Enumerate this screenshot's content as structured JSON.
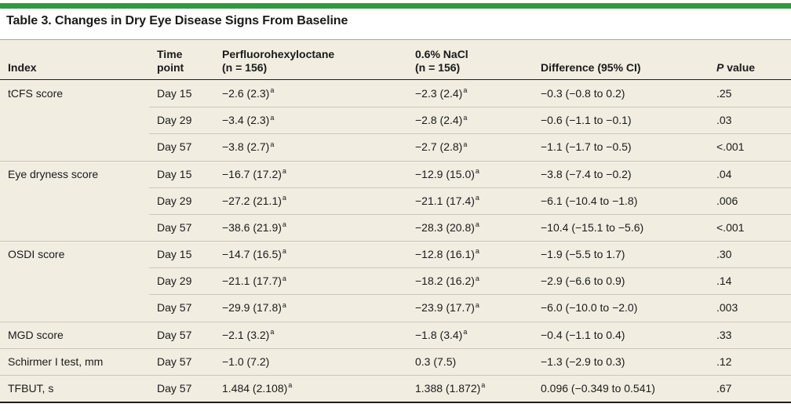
{
  "title": "Table 3. Changes in Dry Eye Disease Signs From Baseline",
  "colors": {
    "green": "#2E9B3E",
    "bg": "#F1EDE1",
    "rule_dark": "#1E1E1E",
    "rule_light": "#CCC9BA",
    "title_rule": "#A9A69A",
    "text": "#1A1A18"
  },
  "header": {
    "index": "Index",
    "time_line1": "Time",
    "time_line2": "point",
    "group1_line1": "Perfluorohexyloctane",
    "group1_line2": "(n = 156)",
    "group2_line1": "0.6% NaCl",
    "group2_line2": "(n = 156)",
    "diff": "Difference (95% CI)",
    "p_italic": "P",
    "p_rest": " value"
  },
  "table": {
    "rows": [
      {
        "index": "tCFS score",
        "time": "Day 15",
        "g1": "−2.6 (2.3)",
        "g1sup": "a",
        "g2": "−2.3 (2.4)",
        "g2sup": "a",
        "diff": "−0.3 (−0.8 to 0.2)",
        "p": ".25"
      },
      {
        "index": "",
        "time": "Day 29",
        "g1": "−3.4 (2.3)",
        "g1sup": "a",
        "g2": "−2.8 (2.4)",
        "g2sup": "a",
        "diff": "−0.6 (−1.1 to −0.1)",
        "p": ".03"
      },
      {
        "index": "",
        "time": "Day 57",
        "g1": "−3.8 (2.7)",
        "g1sup": "a",
        "g2": "−2.7 (2.8)",
        "g2sup": "a",
        "diff": "−1.1 (−1.7 to −0.5)",
        "p": "<.001"
      },
      {
        "index": "Eye dryness score",
        "time": "Day 15",
        "g1": "−16.7 (17.2)",
        "g1sup": "a",
        "g2": "−12.9 (15.0)",
        "g2sup": "a",
        "diff": "−3.8 (−7.4 to −0.2)",
        "p": ".04"
      },
      {
        "index": "",
        "time": "Day 29",
        "g1": "−27.2 (21.1)",
        "g1sup": "a",
        "g2": "−21.1 (17.4)",
        "g2sup": "a",
        "diff": "−6.1 (−10.4 to −1.8)",
        "p": ".006"
      },
      {
        "index": "",
        "time": "Day 57",
        "g1": "−38.6 (21.9)",
        "g1sup": "a",
        "g2": "−28.3 (20.8)",
        "g2sup": "a",
        "diff": "−10.4 (−15.1 to −5.6)",
        "p": "<.001"
      },
      {
        "index": "OSDI score",
        "time": "Day 15",
        "g1": "−14.7 (16.5)",
        "g1sup": "a",
        "g2": "−12.8 (16.1)",
        "g2sup": "a",
        "diff": "−1.9 (−5.5 to 1.7)",
        "p": ".30"
      },
      {
        "index": "",
        "time": "Day 29",
        "g1": "−21.1 (17.7)",
        "g1sup": "a",
        "g2": "−18.2 (16.2)",
        "g2sup": "a",
        "diff": "−2.9 (−6.6 to 0.9)",
        "p": ".14"
      },
      {
        "index": "",
        "time": "Day 57",
        "g1": "−29.9 (17.8)",
        "g1sup": "a",
        "g2": "−23.9 (17.7)",
        "g2sup": "a",
        "diff": "−6.0 (−10.0 to −2.0)",
        "p": ".003"
      },
      {
        "index": "MGD score",
        "time": "Day 57",
        "g1": "−2.1 (3.2)",
        "g1sup": "a",
        "g2": "−1.8 (3.4)",
        "g2sup": "a",
        "diff": "−0.4 (−1.1 to 0.4)",
        "p": ".33"
      },
      {
        "index": "Schirmer I test, mm",
        "time": "Day 57",
        "g1": "−1.0 (7.2)",
        "g1sup": "",
        "g2": "0.3 (7.5)",
        "g2sup": "",
        "diff": "−1.3 (−2.9 to 0.3)",
        "p": ".12"
      },
      {
        "index": "TFBUT, s",
        "time": "Day 57",
        "g1": "1.484 (2.108)",
        "g1sup": "a",
        "g2": "1.388 (1.872)",
        "g2sup": "a",
        "diff": "0.096 (−0.349 to 0.541)",
        "p": ".67"
      }
    ]
  }
}
